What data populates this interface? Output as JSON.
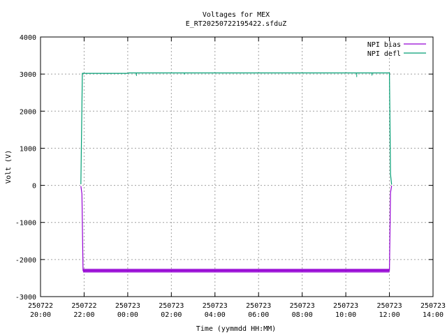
{
  "chart_data": {
    "type": "line",
    "title": "Voltages for MEX",
    "subtitle": "E_RT20250722195422.sfduZ",
    "xlabel": "Time (yymmdd HH:MM)",
    "ylabel": "Volt (V)",
    "xlim_hours": [
      20,
      38
    ],
    "ylim": [
      -3000,
      4000
    ],
    "grid": true,
    "legend_position": "top-right",
    "x_ticks": [
      {
        "date": "250722",
        "time": "20:00",
        "hour": 20
      },
      {
        "date": "250722",
        "time": "22:00",
        "hour": 22
      },
      {
        "date": "250723",
        "time": "00:00",
        "hour": 24
      },
      {
        "date": "250723",
        "time": "02:00",
        "hour": 26
      },
      {
        "date": "250723",
        "time": "04:00",
        "hour": 28
      },
      {
        "date": "250723",
        "time": "06:00",
        "hour": 30
      },
      {
        "date": "250723",
        "time": "08:00",
        "hour": 32
      },
      {
        "date": "250723",
        "time": "10:00",
        "hour": 34
      },
      {
        "date": "250723",
        "time": "12:00",
        "hour": 36
      },
      {
        "date": "250723",
        "time": "14:00",
        "hour": 38
      }
    ],
    "y_ticks": [
      "4000",
      "3000",
      "2000",
      "1000",
      "0",
      "-1000",
      "-2000",
      "-3000"
    ],
    "y_tick_values": [
      4000,
      3000,
      2000,
      1000,
      0,
      -1000,
      -2000,
      -3000
    ],
    "series": [
      {
        "name": "NPI bias",
        "color": "#9400d3",
        "points": [
          [
            21.85,
            -20
          ],
          [
            21.9,
            -230
          ],
          [
            21.95,
            -2300
          ],
          [
            36.0,
            -2290
          ],
          [
            36.05,
            -200
          ],
          [
            36.1,
            -10
          ]
        ],
        "noise_band": {
          "from_hour": 21.95,
          "to_hour": 36.0,
          "low": -2350,
          "high": -2250
        }
      },
      {
        "name": "NPI defl",
        "color": "#009e73",
        "points": [
          [
            21.85,
            30
          ],
          [
            21.92,
            3020
          ],
          [
            24.0,
            3020
          ],
          [
            24.05,
            3030
          ],
          [
            36.0,
            3030
          ],
          [
            36.05,
            300
          ],
          [
            36.1,
            20
          ]
        ],
        "glitches": [
          [
            24.4,
            2950
          ],
          [
            26.6,
            2990
          ],
          [
            34.5,
            2920
          ],
          [
            35.2,
            2960
          ]
        ]
      }
    ]
  }
}
